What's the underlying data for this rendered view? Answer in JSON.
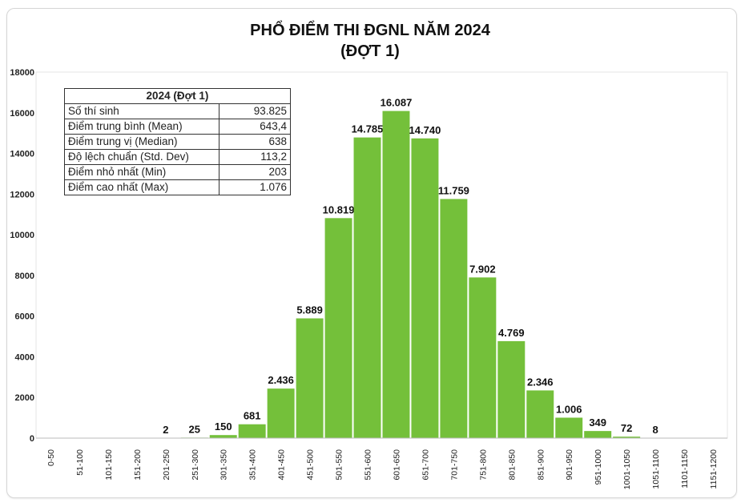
{
  "chart_data": {
    "type": "bar",
    "title": "PHỔ ĐIỂM THI ĐGNL NĂM 2024",
    "subtitle": "(ĐỢT 1)",
    "categories": [
      "0-50",
      "51-100",
      "101-150",
      "151-200",
      "201-250",
      "251-300",
      "301-350",
      "351-400",
      "401-450",
      "451-500",
      "501-550",
      "551-600",
      "601-650",
      "651-700",
      "701-750",
      "751-800",
      "801-850",
      "851-900",
      "901-950",
      "951-1000",
      "1001-1050",
      "1051-1100",
      "1101-1150",
      "1151-1200"
    ],
    "values": [
      0,
      0,
      0,
      0,
      2,
      25,
      150,
      681,
      2436,
      5889,
      10819,
      14785,
      16087,
      14740,
      11759,
      7902,
      4769,
      2346,
      1006,
      349,
      72,
      8,
      0,
      0
    ],
    "data_labels": [
      "",
      "",
      "",
      "",
      "2",
      "25",
      "150",
      "681",
      "2.436",
      "5.889",
      "10.819",
      "14.785",
      "16.087",
      "14.740",
      "11.759",
      "7.902",
      "4.769",
      "2.346",
      "1.006",
      "349",
      "72",
      "8",
      "",
      ""
    ],
    "ylim": [
      0,
      18000
    ],
    "yticks": [
      0,
      2000,
      4000,
      6000,
      8000,
      10000,
      12000,
      14000,
      16000,
      18000
    ],
    "xlabel": "",
    "ylabel": "",
    "grid": false,
    "bar_color": "#74c03a",
    "stats_table": {
      "header": "2024 (Đợt 1)",
      "rows": [
        {
          "label": "Số thí sinh",
          "value": "93.825"
        },
        {
          "label": "Điểm trung bình (Mean)",
          "value": "643,4"
        },
        {
          "label": "Điểm trung vị (Median)",
          "value": "638"
        },
        {
          "label": "Độ lệch chuẩn (Std. Dev)",
          "value": "113,2"
        },
        {
          "label": "Điểm nhỏ nhất (Min)",
          "value": "203"
        },
        {
          "label": "Điểm cao nhất (Max)",
          "value": "1.076"
        }
      ]
    }
  }
}
